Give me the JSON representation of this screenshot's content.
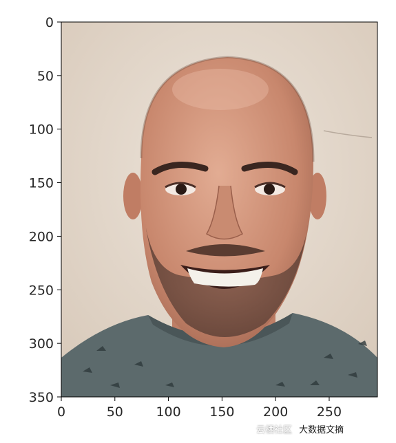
{
  "chart_data": {
    "type": "image",
    "image_subject": "photo of a smiling bald man with a short beard wearing a grey t-shirt",
    "xlim": [
      0,
      295
    ],
    "ylim": [
      350,
      0
    ],
    "x_ticks": [
      0,
      50,
      100,
      150,
      200,
      250
    ],
    "y_ticks": [
      0,
      50,
      100,
      150,
      200,
      250,
      300,
      350
    ],
    "x_tick_labels": [
      "0",
      "50",
      "100",
      "150",
      "200",
      "250"
    ],
    "y_tick_labels": [
      "0",
      "50",
      "100",
      "150",
      "200",
      "250",
      "300",
      "350"
    ],
    "grid": false
  },
  "watermark": {
    "text_1": "云栖社区",
    "text_2": "大数据文摘"
  }
}
